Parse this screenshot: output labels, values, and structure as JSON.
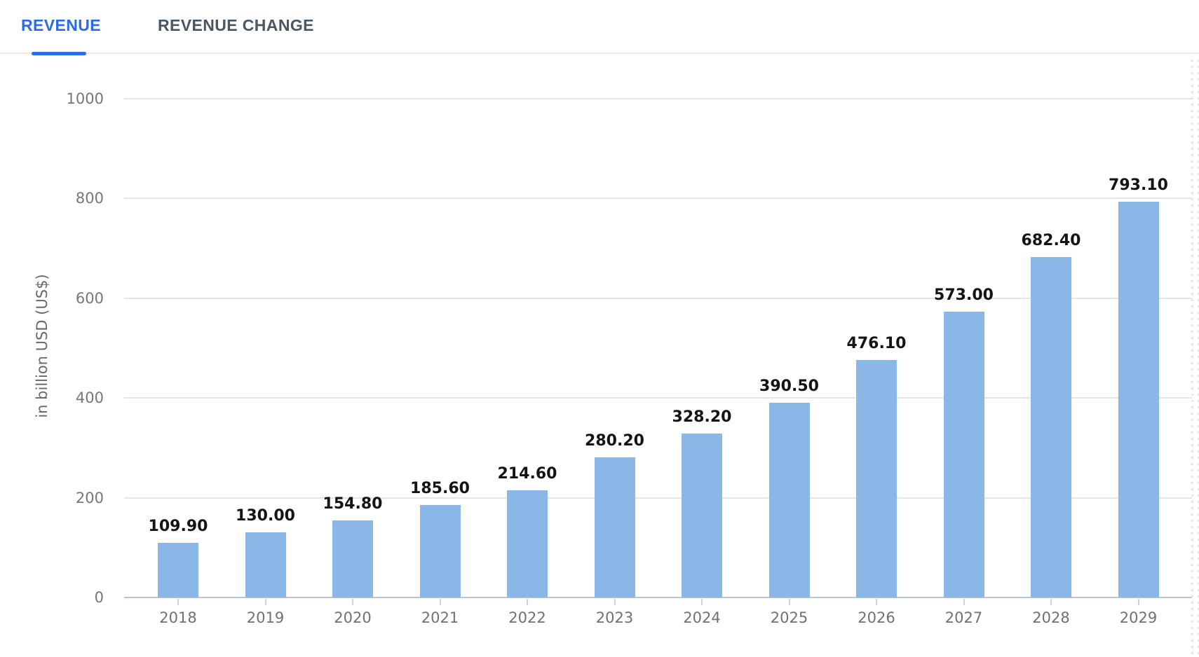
{
  "tab_bar": {
    "tabs": [
      {
        "id": "revenue",
        "label": "REVENUE",
        "active": true
      },
      {
        "id": "revenue-change",
        "label": "REVENUE CHANGE",
        "active": false
      }
    ]
  },
  "chart_data": {
    "type": "bar",
    "title": "",
    "categories": [
      "2018",
      "2019",
      "2020",
      "2021",
      "2022",
      "2023",
      "2024",
      "2025",
      "2026",
      "2027",
      "2028",
      "2029"
    ],
    "values": [
      109.9,
      130.0,
      154.8,
      185.6,
      214.6,
      280.2,
      328.2,
      390.5,
      476.1,
      573.0,
      682.4,
      793.1
    ],
    "value_labels": [
      "109.90",
      "130.00",
      "154.80",
      "185.60",
      "214.60",
      "280.20",
      "328.20",
      "390.50",
      "476.10",
      "573.00",
      "682.40",
      "793.10"
    ],
    "xlabel": "",
    "ylabel": "in billion USD (US$)",
    "ylim": [
      0,
      1000
    ],
    "yticks": [
      0,
      200,
      400,
      600,
      800,
      1000
    ],
    "grid": true,
    "legend_position": "none",
    "bar_color": "#8ab7e8"
  },
  "colors": {
    "active_tab": "#2d6be6",
    "inactive_tab": "#475669",
    "tab_separator": "#e9ebf0",
    "gridline": "#e5e5e5",
    "axis_baseline": "#b7c4dc",
    "tick_mark": "#c9d6ee",
    "value_label": "#141414",
    "axis_text": "#75777c"
  }
}
